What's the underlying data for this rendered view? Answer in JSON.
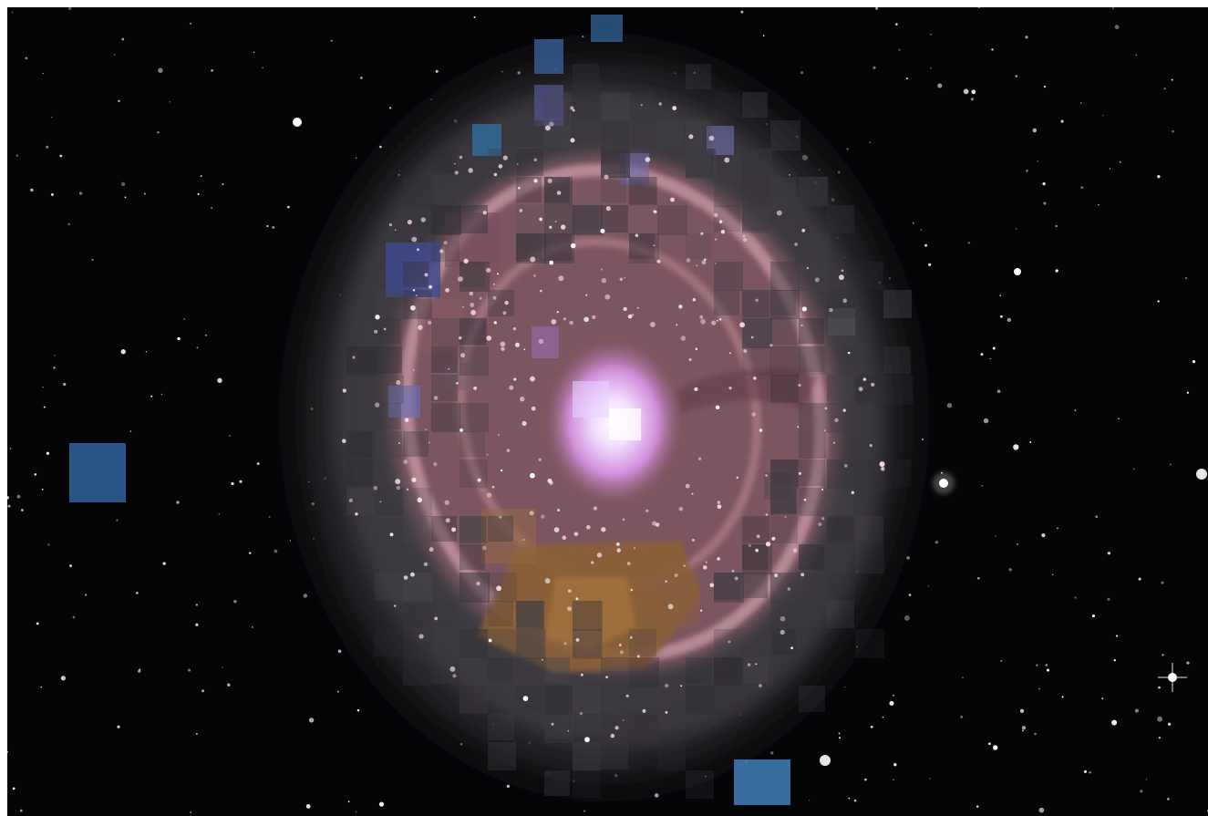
{
  "image": {
    "kind": "astronomical photograph",
    "subject": "spiral galaxy",
    "style": "pixelated mosaic",
    "colors": {
      "background": "#050507",
      "outer_halo": "#3c3a3e",
      "disk": "#855e68",
      "ring": "#c48f9c",
      "core": "#f4e9ff",
      "dust_patch": "#8a6036",
      "blue_patches": "#3a6e9c",
      "violet_patches": "#58589c",
      "stars": "#ffffff"
    }
  }
}
